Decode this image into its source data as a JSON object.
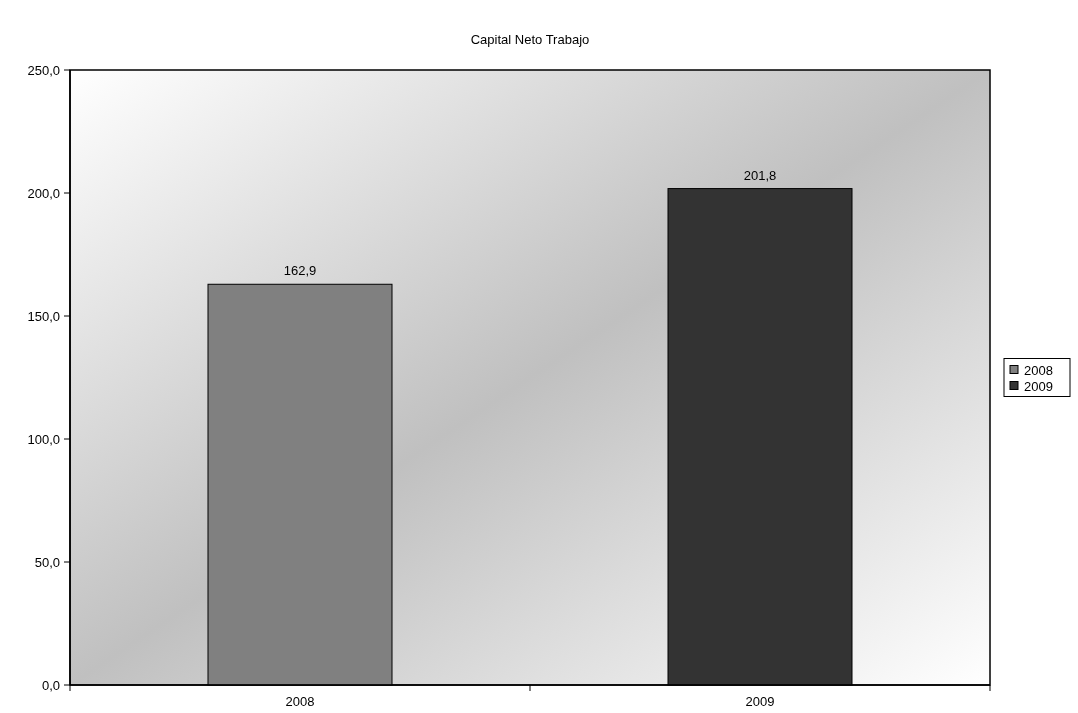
{
  "chart_data": {
    "type": "bar",
    "title": "Capital Neto Trabajo",
    "categories": [
      "2008",
      "2009"
    ],
    "stacked": true,
    "series": [
      {
        "name": "2008",
        "color": "#808080",
        "values": [
          162.9,
          null
        ],
        "value_labels": [
          "162,9",
          null
        ]
      },
      {
        "name": "2009",
        "color": "#333333",
        "values": [
          null,
          201.8
        ],
        "value_labels": [
          null,
          "201,8"
        ]
      }
    ],
    "ylim": [
      0,
      250
    ],
    "yticks": [
      {
        "value": 0,
        "label": "0,0"
      },
      {
        "value": 50,
        "label": "50,0"
      },
      {
        "value": 100,
        "label": "100,0"
      },
      {
        "value": 150,
        "label": "150,0"
      },
      {
        "value": 200,
        "label": "200,0"
      },
      {
        "value": 250,
        "label": "250,0"
      }
    ],
    "grid": false,
    "legend": "right"
  }
}
